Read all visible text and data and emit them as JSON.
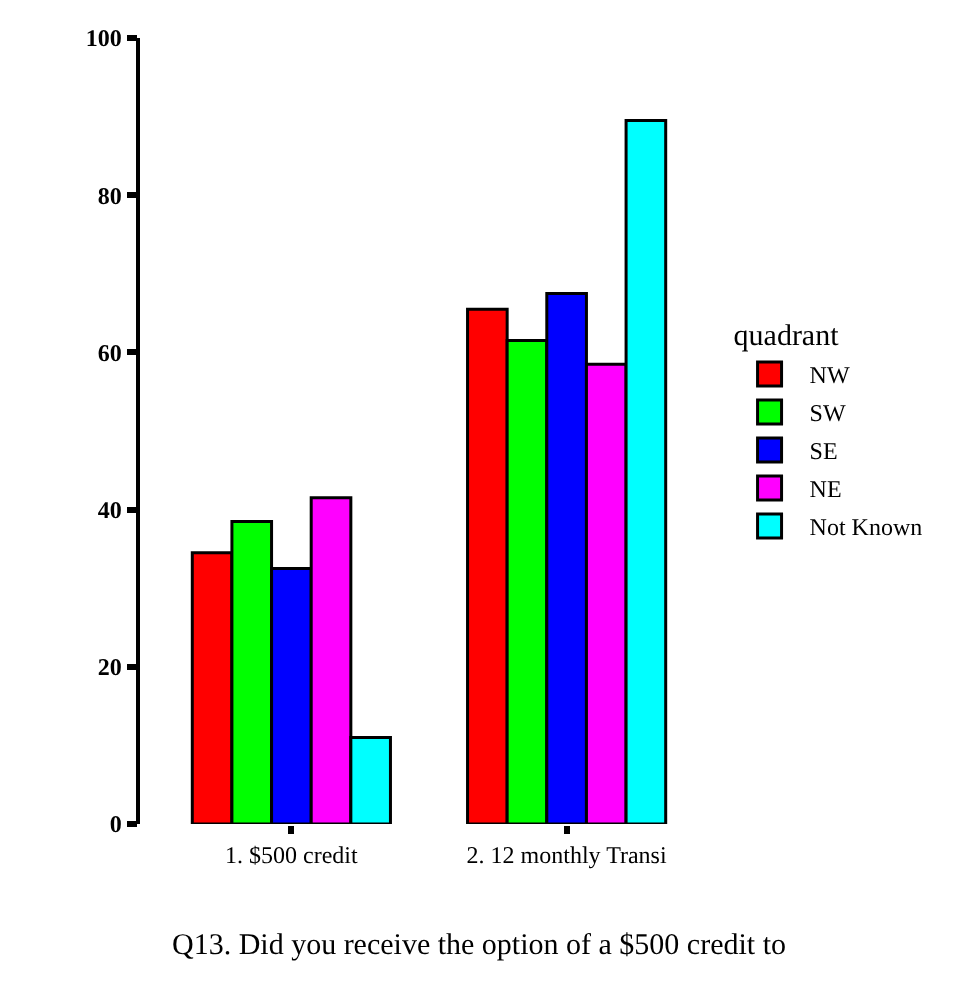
{
  "chart_data": {
    "type": "bar",
    "title": "Q13. Did you receive the option of a $500 credit to",
    "categories": [
      "1. $500 credit",
      "2. 12 monthly Transi"
    ],
    "legend_title": "quadrant",
    "legend": "right",
    "ylim": [
      0,
      100
    ],
    "yticks": [
      0,
      20,
      40,
      60,
      80,
      100
    ],
    "series": [
      {
        "name": "NW",
        "color": "#ff0000",
        "values": [
          34.5,
          65.5
        ]
      },
      {
        "name": "SW",
        "color": "#00ff00",
        "values": [
          38.5,
          61.5
        ]
      },
      {
        "name": "SE",
        "color": "#0000ff",
        "values": [
          32.5,
          67.5
        ]
      },
      {
        "name": "NE",
        "color": "#ff00ff",
        "values": [
          41.5,
          58.5
        ]
      },
      {
        "name": "Not Known",
        "color": "#00ffff",
        "values": [
          11,
          89.5
        ]
      }
    ]
  }
}
